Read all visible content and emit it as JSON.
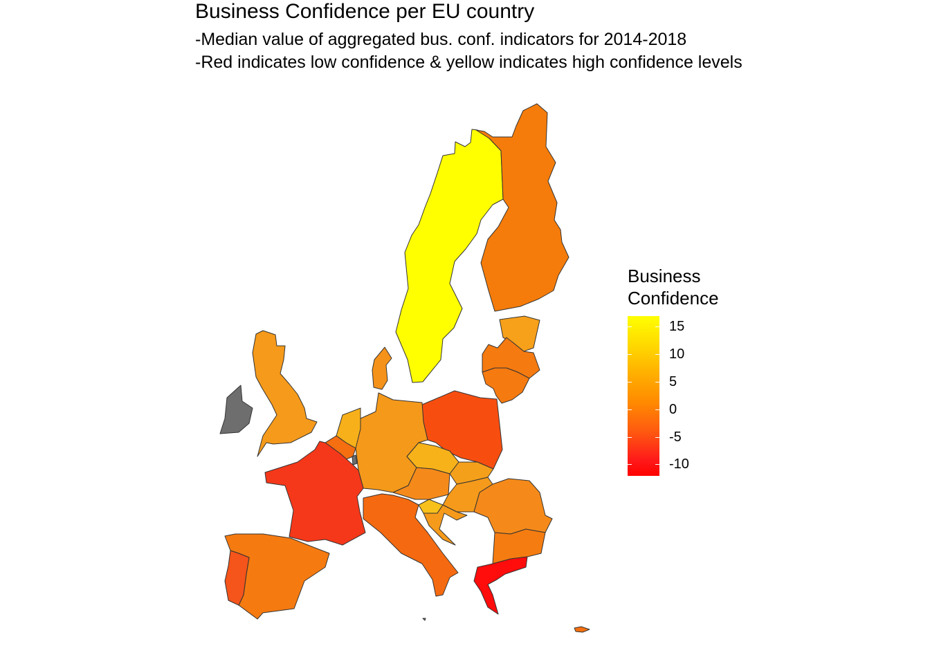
{
  "title": "Business Confidence per EU country",
  "subtitle_1": "-Median value of aggregated bus. conf. indicators for 2014-2018",
  "subtitle_2": "-Red indicates low confidence & yellow indicates high confidence levels",
  "legend": {
    "title_line1": "Business",
    "title_line2": "Confidence",
    "ticks": [
      "15",
      "10",
      "5",
      "0",
      "-5",
      "-10"
    ],
    "color_low": "#ff0000",
    "color_high": "#ffff00"
  },
  "colors": {
    "no_data": "#6e6e6e",
    "border": "#333333"
  },
  "countries": [
    {
      "id": "sweden",
      "fill": "#ffff00"
    },
    {
      "id": "finland",
      "fill": "#f57c0a"
    },
    {
      "id": "estonia",
      "fill": "#f7a01a"
    },
    {
      "id": "latvia",
      "fill": "#f57a10"
    },
    {
      "id": "lithuania",
      "fill": "#f57a10"
    },
    {
      "id": "poland",
      "fill": "#f74e10"
    },
    {
      "id": "germany",
      "fill": "#f5991a"
    },
    {
      "id": "denmark",
      "fill": "#f5921a"
    },
    {
      "id": "netherlands",
      "fill": "#f7b019"
    },
    {
      "id": "belgium",
      "fill": "#f56e10"
    },
    {
      "id": "luxembourg",
      "fill": "#6e6e6e"
    },
    {
      "id": "france",
      "fill": "#f5381a"
    },
    {
      "id": "uk",
      "fill": "#f59a1a"
    },
    {
      "id": "ireland",
      "fill": "#6e6e6e"
    },
    {
      "id": "spain",
      "fill": "#f57a10"
    },
    {
      "id": "portugal",
      "fill": "#f5541a"
    },
    {
      "id": "italy",
      "fill": "#f56a10"
    },
    {
      "id": "czechia",
      "fill": "#f7b21a"
    },
    {
      "id": "slovakia",
      "fill": "#f5a01a"
    },
    {
      "id": "austria",
      "fill": "#f58a1a"
    },
    {
      "id": "hungary",
      "fill": "#f59a1a"
    },
    {
      "id": "slovenia",
      "fill": "#f7c01a"
    },
    {
      "id": "croatia",
      "fill": "#f59a1a"
    },
    {
      "id": "romania",
      "fill": "#f58a1a"
    },
    {
      "id": "bulgaria",
      "fill": "#f57c10"
    },
    {
      "id": "greece",
      "fill": "#ff0c0c"
    },
    {
      "id": "cyprus",
      "fill": "#f57010"
    },
    {
      "id": "malta",
      "fill": "#6e6e6e"
    }
  ]
}
